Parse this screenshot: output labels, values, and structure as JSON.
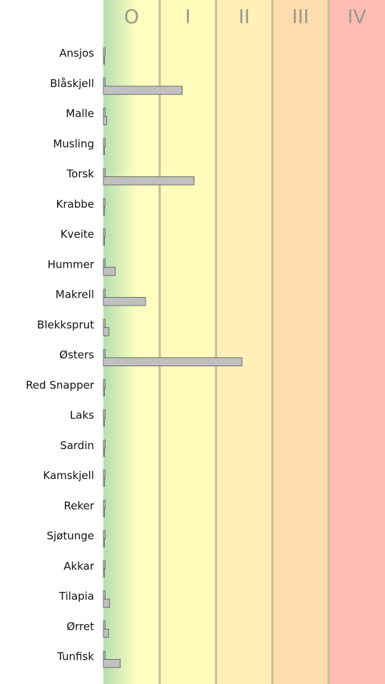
{
  "chart_data": {
    "type": "bar",
    "orientation": "horizontal",
    "categories": [
      "Ansjos",
      "Blåskjell",
      "Malle",
      "Musling",
      "Torsk",
      "Krabbe",
      "Kveite",
      "Hummer",
      "Makrell",
      "Blekksprut",
      "Østers",
      "Red Snapper",
      "Laks",
      "Sardin",
      "Kamskjell",
      "Reker",
      "Sjøtunge",
      "Akkar",
      "Tilapia",
      "Ørret",
      "Tunfisk"
    ],
    "series": [
      {
        "color": "#c0c0c0",
        "values": [
          0.03,
          0.03,
          0.03,
          0.03,
          0.03,
          0.03,
          0.03,
          0.03,
          0.03,
          0.03,
          0.03,
          0.03,
          0.03,
          0.03,
          0.03,
          0.03,
          0.03,
          0.03,
          0.03,
          0.03,
          0.03
        ]
      },
      {
        "color": "#c0c0c0",
        "values": [
          0.02,
          1.4,
          0.06,
          0.02,
          1.61,
          0.02,
          0.02,
          0.21,
          0.75,
          0.1,
          2.46,
          0.02,
          0.02,
          0.02,
          0.02,
          0.02,
          0.02,
          0.02,
          0.11,
          0.09,
          0.3
        ]
      }
    ],
    "xlim": [
      0,
      5
    ],
    "xticks": [
      1,
      2,
      3,
      4
    ],
    "zones": {
      "labels": [
        "O",
        "I",
        "II",
        "III",
        "IV"
      ],
      "colors": [
        "#ffffc0",
        "#fffbbb",
        "#fff0b8",
        "#ffdcae",
        "#ffbcb4"
      ]
    },
    "grid": true
  }
}
